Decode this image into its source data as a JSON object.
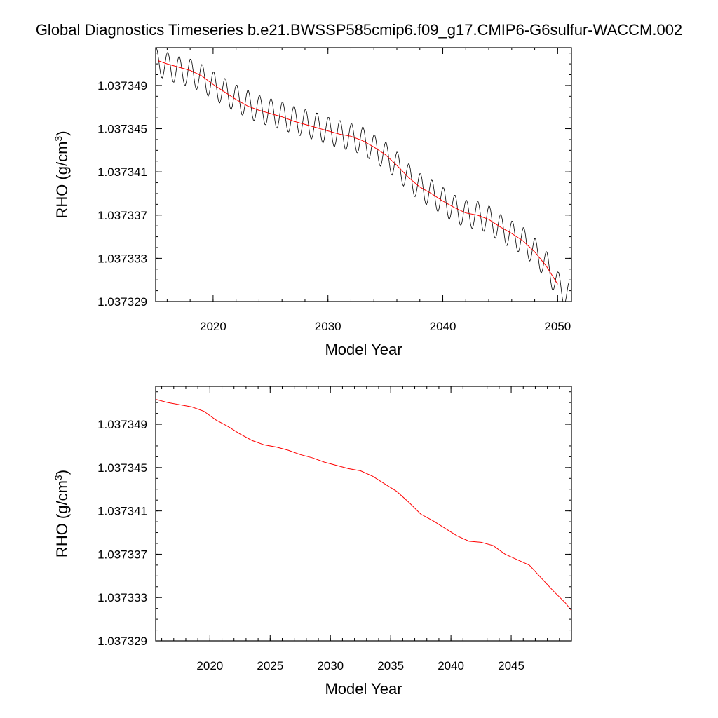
{
  "title": "Global Diagnostics Timeseries b.e21.BWSSP585cmip6.f09_g17.CMIP6-G6sulfur-WACCM.002",
  "colors": {
    "raw": "#000000",
    "smooth": "#ff0000"
  },
  "chart_data": [
    {
      "type": "line",
      "xlabel": "Model Year",
      "ylabel_main": "RHO (g/cm",
      "ylabel_sup": "3",
      "ylabel_close": ")",
      "xlim": [
        2015.0,
        2051.2
      ],
      "ylim": [
        1.037329,
        1.0373525
      ],
      "xticks": [
        "2020",
        "2030",
        "2040",
        "2050"
      ],
      "xtick_values": [
        2020,
        2030,
        2040,
        2050
      ],
      "yticks": [
        "1.037329",
        "1.037333",
        "1.037337",
        "1.037341",
        "1.037345",
        "1.037349"
      ],
      "ytick_values": [
        1.037329,
        1.037333,
        1.037337,
        1.037341,
        1.037345,
        1.037349
      ],
      "series": [
        {
          "style": "raw-monthly",
          "start_year": 2015.0,
          "end_year": 2051.0,
          "seasonal_amplitude": 1.3e-06,
          "trend": [
            [
              2015.0,
              1.0373512
            ],
            [
              2016,
              1.0373508
            ],
            [
              2017,
              1.0373504
            ],
            [
              2018,
              1.0373502
            ],
            [
              2019,
              1.0373497
            ],
            [
              2020,
              1.037349
            ],
            [
              2021,
              1.0373484
            ],
            [
              2022,
              1.0373478
            ],
            [
              2023,
              1.0373473
            ],
            [
              2024,
              1.0373468
            ],
            [
              2025,
              1.0373465
            ],
            [
              2026,
              1.0373462
            ],
            [
              2027,
              1.0373458
            ],
            [
              2028,
              1.0373455
            ],
            [
              2029,
              1.0373452
            ],
            [
              2030,
              1.0373448
            ],
            [
              2031,
              1.0373445
            ],
            [
              2032,
              1.0373442
            ],
            [
              2033,
              1.0373439
            ],
            [
              2034,
              1.0373432
            ],
            [
              2035,
              1.0373425
            ],
            [
              2036,
              1.0373416
            ],
            [
              2037,
              1.0373405
            ],
            [
              2038,
              1.0373396
            ],
            [
              2039,
              1.037339
            ],
            [
              2040,
              1.0373383
            ],
            [
              2041,
              1.0373376
            ],
            [
              2042,
              1.0373371
            ],
            [
              2043,
              1.037337
            ],
            [
              2044,
              1.0373366
            ],
            [
              2045,
              1.0373358
            ],
            [
              2046,
              1.0373352
            ],
            [
              2047,
              1.0373346
            ],
            [
              2048,
              1.0373336
            ],
            [
              2049,
              1.0373324
            ],
            [
              2050,
              1.0373305
            ],
            [
              2051,
              1.0373296
            ]
          ]
        },
        {
          "style": "smoothed",
          "points": [
            [
              2015.2,
              1.0373513
            ],
            [
              2016,
              1.037351
            ],
            [
              2017,
              1.0373507
            ],
            [
              2018,
              1.0373504
            ],
            [
              2019,
              1.0373499
            ],
            [
              2020,
              1.0373491
            ],
            [
              2021,
              1.0373484
            ],
            [
              2022,
              1.0373477
            ],
            [
              2023,
              1.0373471
            ],
            [
              2024,
              1.0373467
            ],
            [
              2025,
              1.0373464
            ],
            [
              2026,
              1.0373461
            ],
            [
              2027,
              1.0373457
            ],
            [
              2028,
              1.0373454
            ],
            [
              2029,
              1.0373451
            ],
            [
              2030,
              1.0373448
            ],
            [
              2031,
              1.0373445
            ],
            [
              2032,
              1.0373443
            ],
            [
              2033,
              1.0373439
            ],
            [
              2034,
              1.0373433
            ],
            [
              2035,
              1.0373426
            ],
            [
              2036,
              1.0373416
            ],
            [
              2037,
              1.0373405
            ],
            [
              2038,
              1.0373396
            ],
            [
              2039,
              1.037339
            ],
            [
              2040,
              1.0373383
            ],
            [
              2041,
              1.0373377
            ],
            [
              2042,
              1.0373372
            ],
            [
              2043,
              1.037337
            ],
            [
              2044,
              1.0373366
            ],
            [
              2045,
              1.0373359
            ],
            [
              2046,
              1.0373353
            ],
            [
              2047,
              1.0373346
            ],
            [
              2048,
              1.0373336
            ],
            [
              2049,
              1.0373323
            ],
            [
              2050,
              1.0373306
            ]
          ]
        }
      ]
    },
    {
      "type": "line",
      "xlabel": "Model Year",
      "ylabel_main": "RHO (g/cm",
      "ylabel_sup": "3",
      "ylabel_close": ")",
      "xlim": [
        2015.5,
        2050.0
      ],
      "ylim": [
        1.037329,
        1.0373525
      ],
      "xticks": [
        "2020",
        "2025",
        "2030",
        "2035",
        "2040",
        "2045"
      ],
      "xtick_values": [
        2020,
        2025,
        2030,
        2035,
        2040,
        2045
      ],
      "yticks": [
        "1.037329",
        "1.037333",
        "1.037337",
        "1.037341",
        "1.037345",
        "1.037349"
      ],
      "ytick_values": [
        1.037329,
        1.037333,
        1.037337,
        1.037341,
        1.037345,
        1.037349
      ],
      "series": [
        {
          "style": "smoothed",
          "points": [
            [
              2015.5,
              1.0373513
            ],
            [
              2016.5,
              1.037351
            ],
            [
              2017.5,
              1.0373508
            ],
            [
              2018.5,
              1.0373506
            ],
            [
              2019.5,
              1.0373502
            ],
            [
              2020.5,
              1.0373494
            ],
            [
              2021.5,
              1.0373488
            ],
            [
              2022.5,
              1.0373481
            ],
            [
              2023.5,
              1.0373475
            ],
            [
              2024.5,
              1.0373471
            ],
            [
              2025.5,
              1.0373469
            ],
            [
              2026.5,
              1.0373466
            ],
            [
              2027.5,
              1.0373462
            ],
            [
              2028.5,
              1.0373459
            ],
            [
              2029.5,
              1.0373455
            ],
            [
              2030.5,
              1.0373452
            ],
            [
              2031.5,
              1.0373449
            ],
            [
              2032.5,
              1.0373447
            ],
            [
              2033.5,
              1.0373442
            ],
            [
              2034.5,
              1.0373435
            ],
            [
              2035.5,
              1.0373428
            ],
            [
              2036.5,
              1.0373418
            ],
            [
              2037.5,
              1.0373407
            ],
            [
              2038.5,
              1.0373401
            ],
            [
              2039.5,
              1.0373394
            ],
            [
              2040.5,
              1.0373387
            ],
            [
              2041.5,
              1.0373382
            ],
            [
              2042.5,
              1.0373381
            ],
            [
              2043.5,
              1.0373378
            ],
            [
              2044.5,
              1.037337
            ],
            [
              2045.5,
              1.0373365
            ],
            [
              2046.5,
              1.037336
            ],
            [
              2047.5,
              1.0373348
            ],
            [
              2048.5,
              1.0373336
            ],
            [
              2049.5,
              1.0373325
            ],
            [
              2050.0,
              1.0373318
            ]
          ]
        }
      ]
    }
  ]
}
